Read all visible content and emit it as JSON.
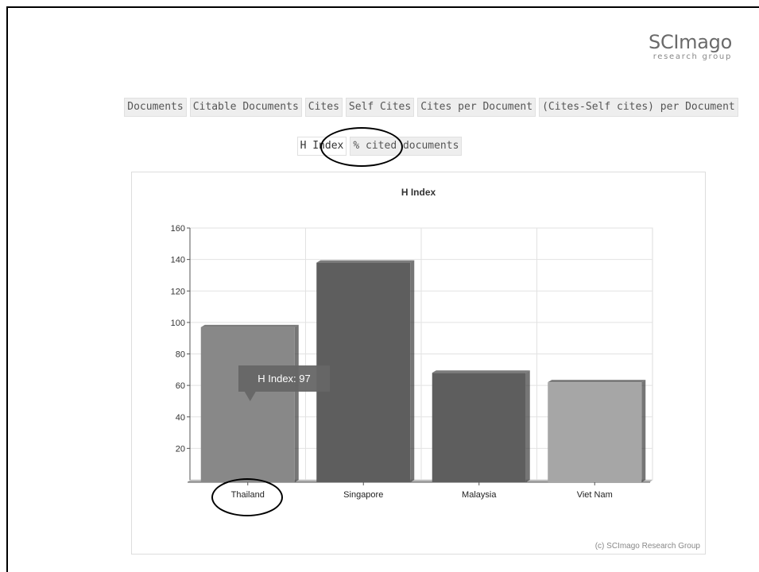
{
  "logo": {
    "main": "SCImago",
    "sub": "research group"
  },
  "tabs_row1": [
    "Documents",
    "Citable Documents",
    "Cites",
    "Self Cites",
    "Cites per Document",
    "(Cites-Self cites) per Document"
  ],
  "tabs_row2": [
    "H Index",
    "% cited documents"
  ],
  "active_tab": "H Index",
  "chart_data": {
    "type": "bar",
    "title": "H Index",
    "categories": [
      "Thailand",
      "Singapore",
      "Malaysia",
      "Viet Nam"
    ],
    "series": [
      {
        "name": "H Index",
        "values": [
          97,
          138,
          68,
          62
        ]
      }
    ],
    "bar_colors": [
      "#888888",
      "#5e5e5e",
      "#5e5e5e",
      "#a6a6a6"
    ],
    "ylim": [
      0,
      160
    ],
    "yticks": [
      20,
      40,
      60,
      80,
      100,
      120,
      140,
      160
    ],
    "grid": true,
    "tooltip": {
      "text": "H Index: 97"
    }
  },
  "credit": "(c) SCImago Research Group"
}
